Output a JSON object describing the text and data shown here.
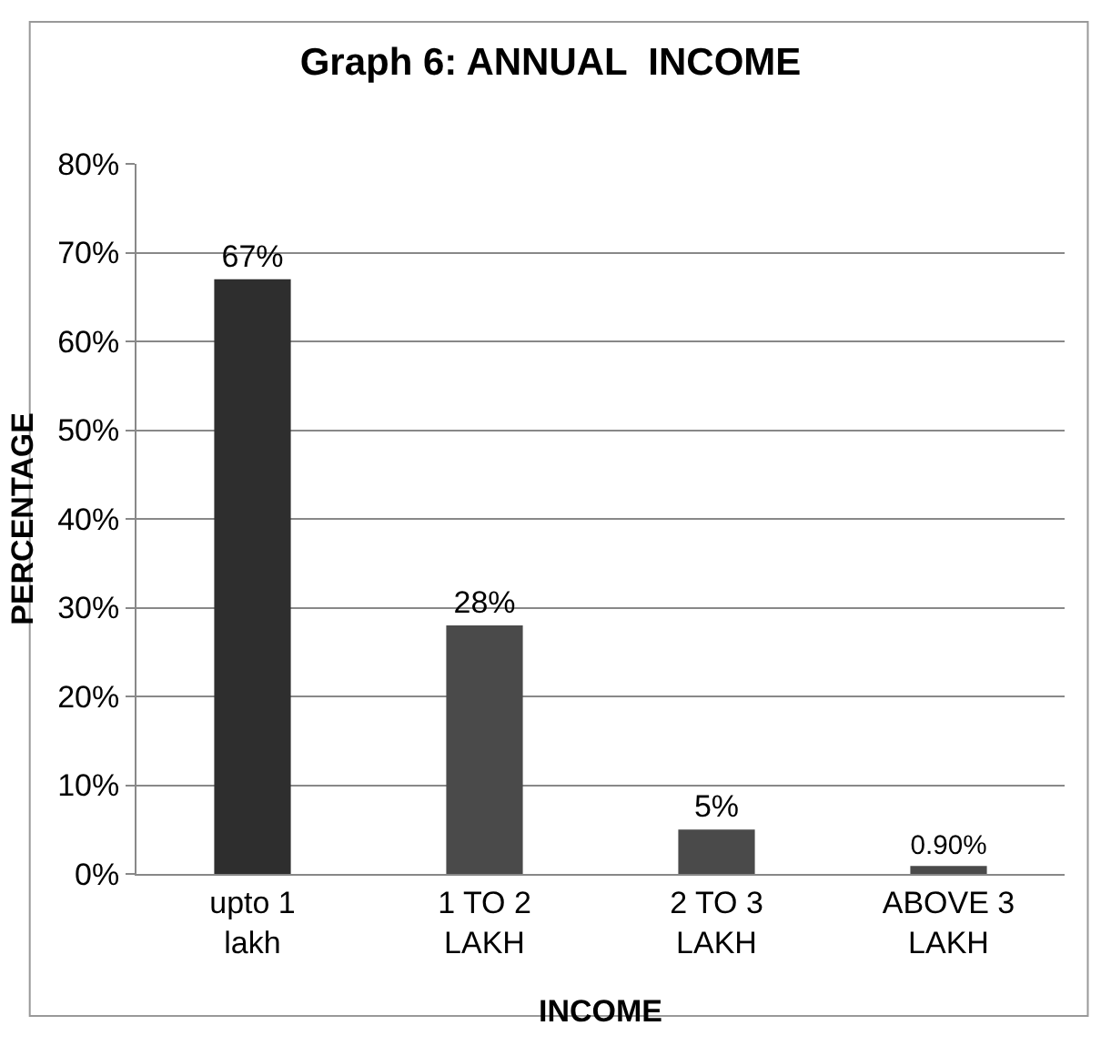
{
  "chart_data": {
    "type": "bar",
    "title": "Graph 6: ANNUAL  INCOME",
    "xlabel": "INCOME",
    "ylabel": "PERCENTAGE",
    "categories": [
      "upto 1 lakh",
      "1 TO 2 LAKH",
      "2 TO 3 LAKH",
      "ABOVE 3 LAKH"
    ],
    "values": [
      67,
      28,
      5,
      0.9
    ],
    "colors": [
      "#2e2e2e",
      "#4a4a4a",
      "#4a4a4a",
      "#4a4a4a"
    ],
    "value_labels": [
      "67%",
      "28%",
      "5%",
      "0.90%"
    ],
    "ylim": [
      0,
      80
    ],
    "yticks": [
      {
        "value": 0,
        "label": "0%"
      },
      {
        "value": 10,
        "label": "10%"
      },
      {
        "value": 20,
        "label": "20%"
      },
      {
        "value": 30,
        "label": "30%"
      },
      {
        "value": 40,
        "label": "40%"
      },
      {
        "value": 50,
        "label": "50%"
      },
      {
        "value": 60,
        "label": "60%"
      },
      {
        "value": 70,
        "label": "70%"
      },
      {
        "value": 80,
        "label": "80%"
      }
    ],
    "grid": "y"
  }
}
